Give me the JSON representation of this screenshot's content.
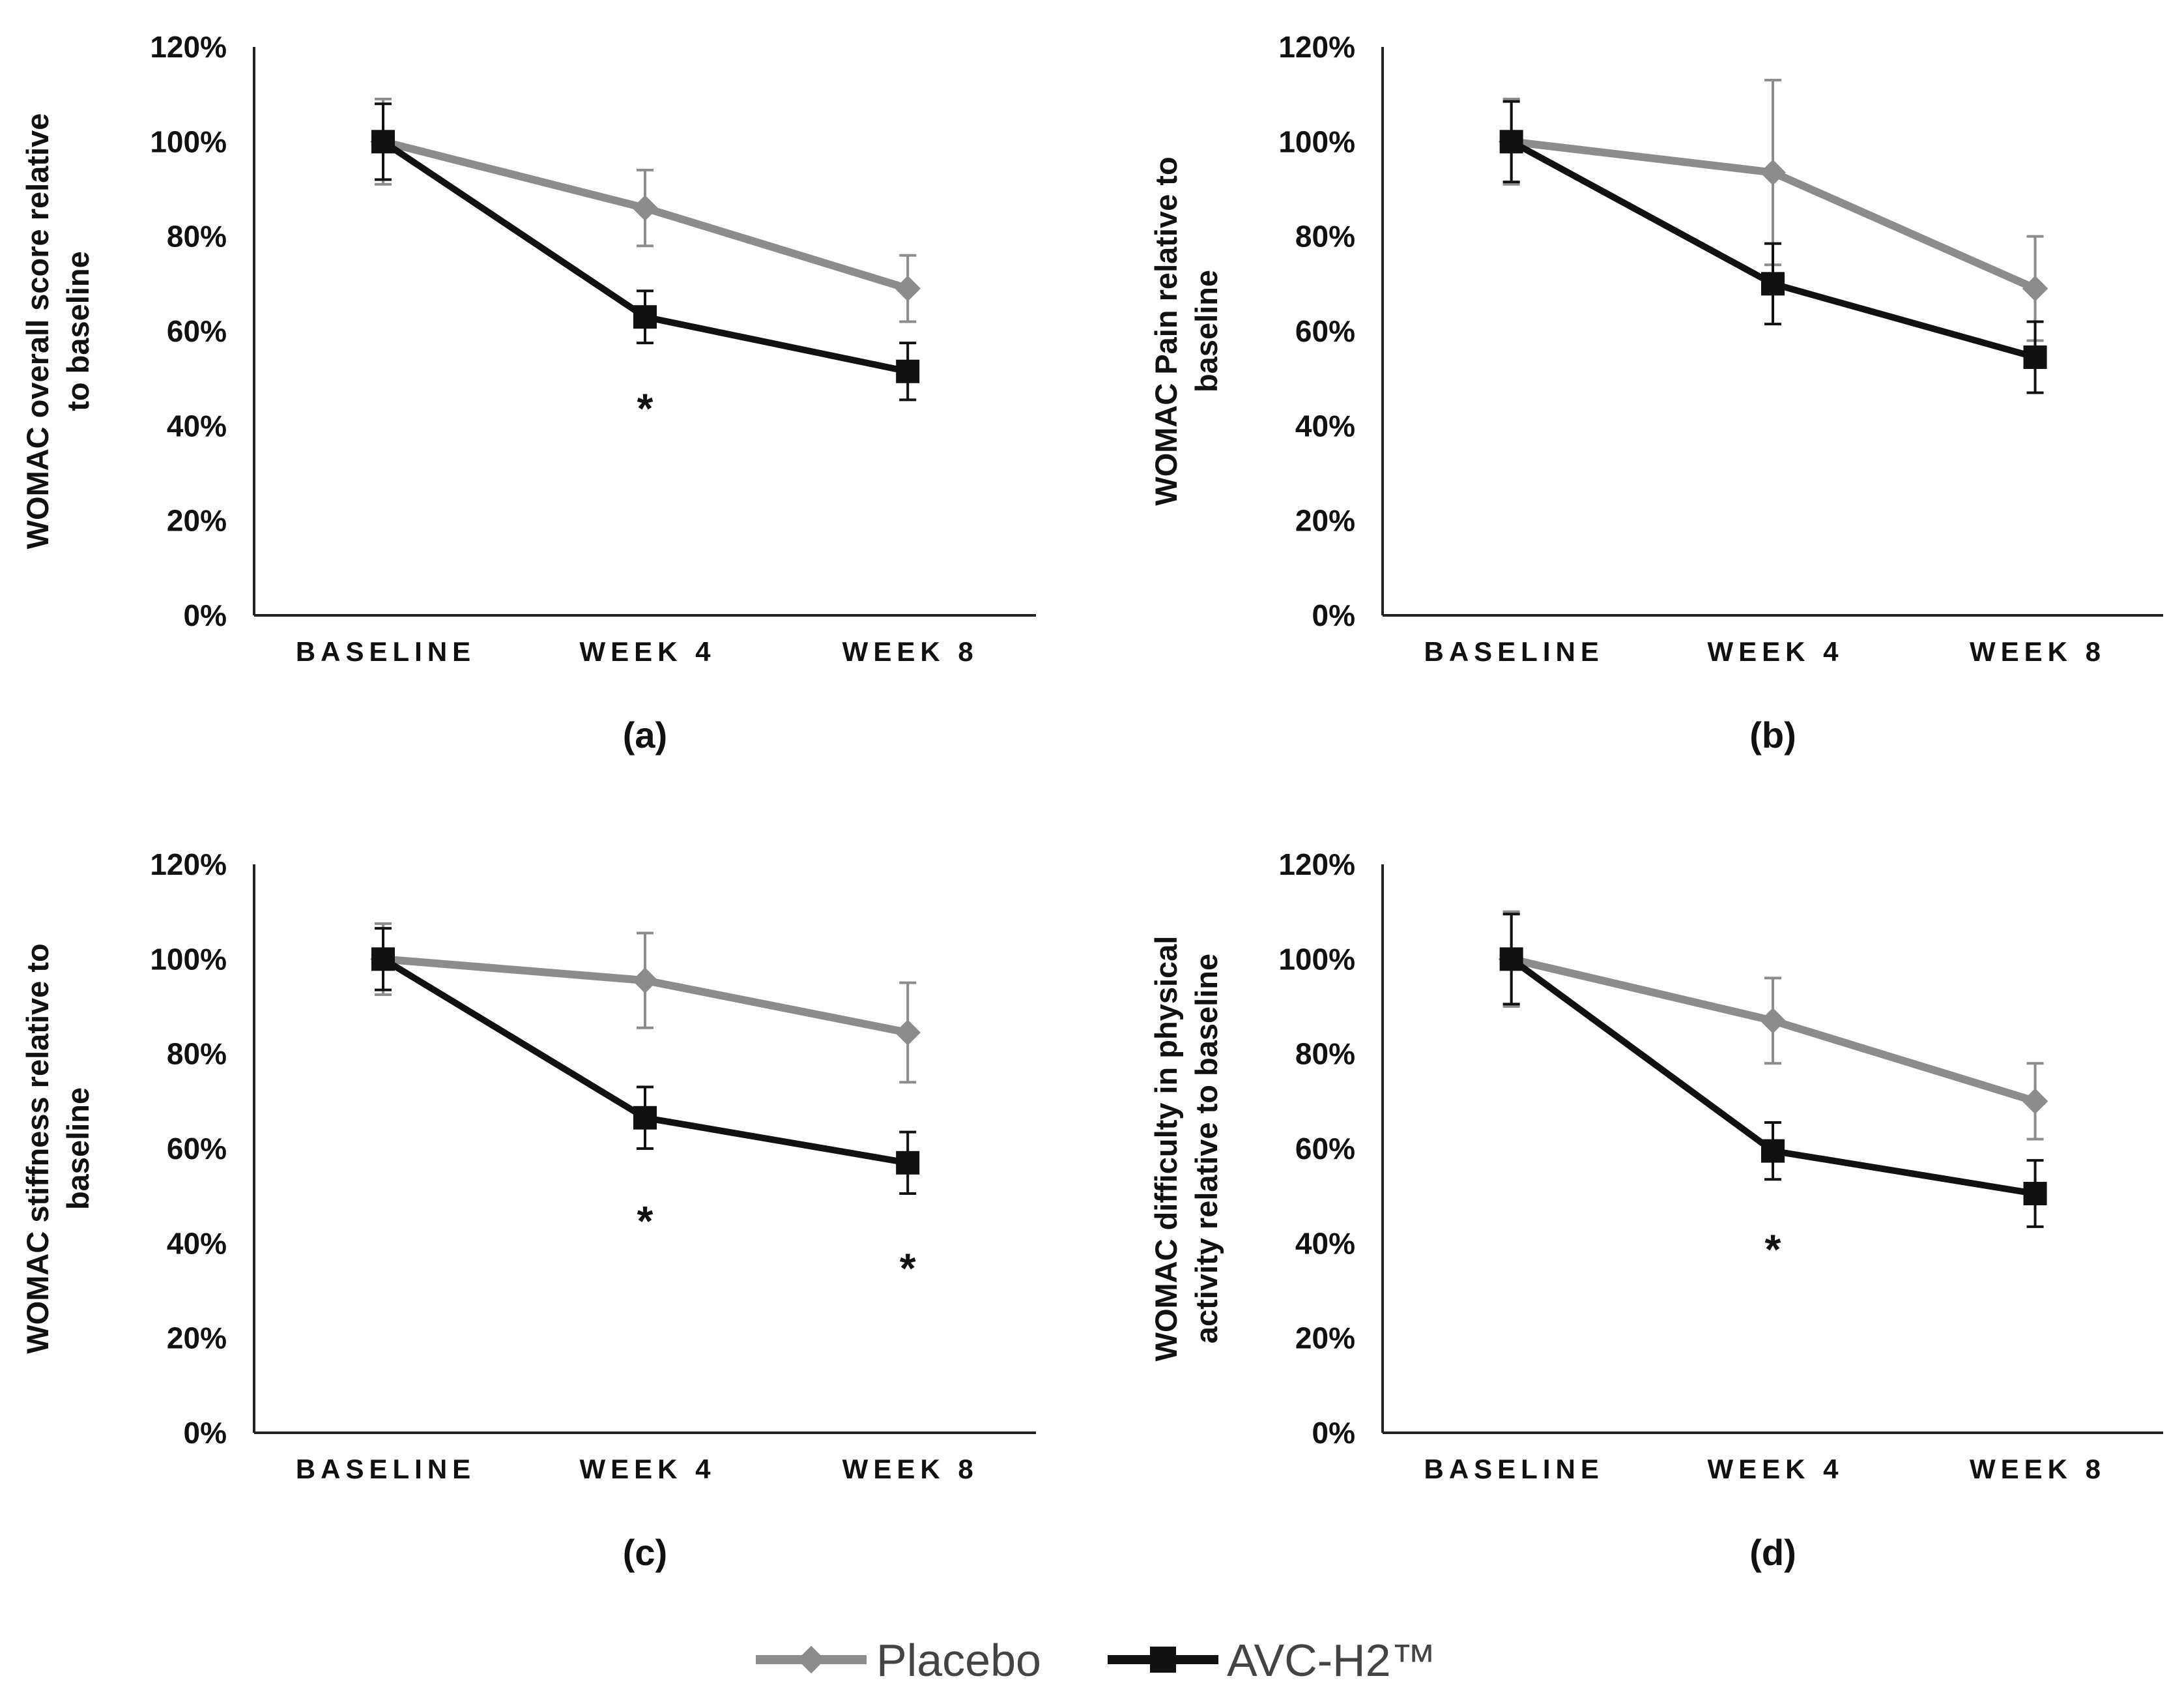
{
  "colors": {
    "placebo": "#8c8c8c",
    "avc": "#111111",
    "axis": "#222222"
  },
  "legend": {
    "placebo": "Placebo",
    "avc": "AVC-H2™"
  },
  "chart_data": [
    {
      "type": "line",
      "panel_label": "(a)",
      "ylabel_lines": [
        "WOMAC overall score relative",
        "to baseline"
      ],
      "categories": [
        "BASELINE",
        "WEEK 4",
        "WEEK 8"
      ],
      "ylim": [
        0,
        120
      ],
      "yticks": [
        0,
        20,
        40,
        60,
        80,
        100,
        120
      ],
      "ytick_labels": [
        "0%",
        "20%",
        "40%",
        "60%",
        "80%",
        "100%",
        "120%"
      ],
      "series": [
        {
          "name": "Placebo",
          "key": "placebo",
          "values": [
            100,
            86,
            69
          ],
          "err": [
            9,
            8,
            7
          ]
        },
        {
          "name": "AVC-H2™",
          "key": "avc",
          "values": [
            100,
            63,
            51.5
          ],
          "err": [
            8,
            5.5,
            6
          ]
        }
      ],
      "annotations": [
        {
          "category": 1,
          "y": 44,
          "text": "*"
        }
      ]
    },
    {
      "type": "line",
      "panel_label": "(b)",
      "ylabel_lines": [
        "WOMAC Pain relative to",
        "baseline"
      ],
      "categories": [
        "BASELINE",
        "WEEK 4",
        "WEEK 8"
      ],
      "ylim": [
        0,
        120
      ],
      "yticks": [
        0,
        20,
        40,
        60,
        80,
        100,
        120
      ],
      "ytick_labels": [
        "0%",
        "20%",
        "40%",
        "60%",
        "80%",
        "100%",
        "120%"
      ],
      "series": [
        {
          "name": "Placebo",
          "key": "placebo",
          "values": [
            100,
            93.5,
            69
          ],
          "err": [
            9,
            19.5,
            11
          ]
        },
        {
          "name": "AVC-H2™",
          "key": "avc",
          "values": [
            100,
            70,
            54.5
          ],
          "err": [
            8.5,
            8.5,
            7.5
          ]
        }
      ],
      "annotations": []
    },
    {
      "type": "line",
      "panel_label": "(c)",
      "ylabel_lines": [
        "WOMAC stiffness relative to",
        "baseline"
      ],
      "categories": [
        "BASELINE",
        "WEEK 4",
        "WEEK 8"
      ],
      "ylim": [
        0,
        120
      ],
      "yticks": [
        0,
        20,
        40,
        60,
        80,
        100,
        120
      ],
      "ytick_labels": [
        "0%",
        "20%",
        "40%",
        "60%",
        "80%",
        "100%",
        "120%"
      ],
      "series": [
        {
          "name": "Placebo",
          "key": "placebo",
          "values": [
            100,
            95.5,
            84.5
          ],
          "err": [
            7.5,
            10,
            10.5
          ]
        },
        {
          "name": "AVC-H2™",
          "key": "avc",
          "values": [
            100,
            66.5,
            57
          ],
          "err": [
            6.5,
            6.5,
            6.5
          ]
        }
      ],
      "annotations": [
        {
          "category": 1,
          "y": 45,
          "text": "*"
        },
        {
          "category": 2,
          "y": 35,
          "text": "*"
        }
      ]
    },
    {
      "type": "line",
      "panel_label": "(d)",
      "ylabel_lines": [
        "WOMAC difficulty in physical",
        "activity relative to baseline"
      ],
      "categories": [
        "BASELINE",
        "WEEK 4",
        "WEEK 8"
      ],
      "ylim": [
        0,
        120
      ],
      "yticks": [
        0,
        20,
        40,
        60,
        80,
        100,
        120
      ],
      "ytick_labels": [
        "0%",
        "20%",
        "40%",
        "60%",
        "80%",
        "100%",
        "120%"
      ],
      "series": [
        {
          "name": "Placebo",
          "key": "placebo",
          "values": [
            100,
            87,
            70
          ],
          "err": [
            10,
            9,
            8
          ]
        },
        {
          "name": "AVC-H2™",
          "key": "avc",
          "values": [
            100,
            59.5,
            50.5
          ],
          "err": [
            9.5,
            6,
            7
          ]
        }
      ],
      "annotations": [
        {
          "category": 1,
          "y": 39,
          "text": "*"
        }
      ]
    }
  ]
}
